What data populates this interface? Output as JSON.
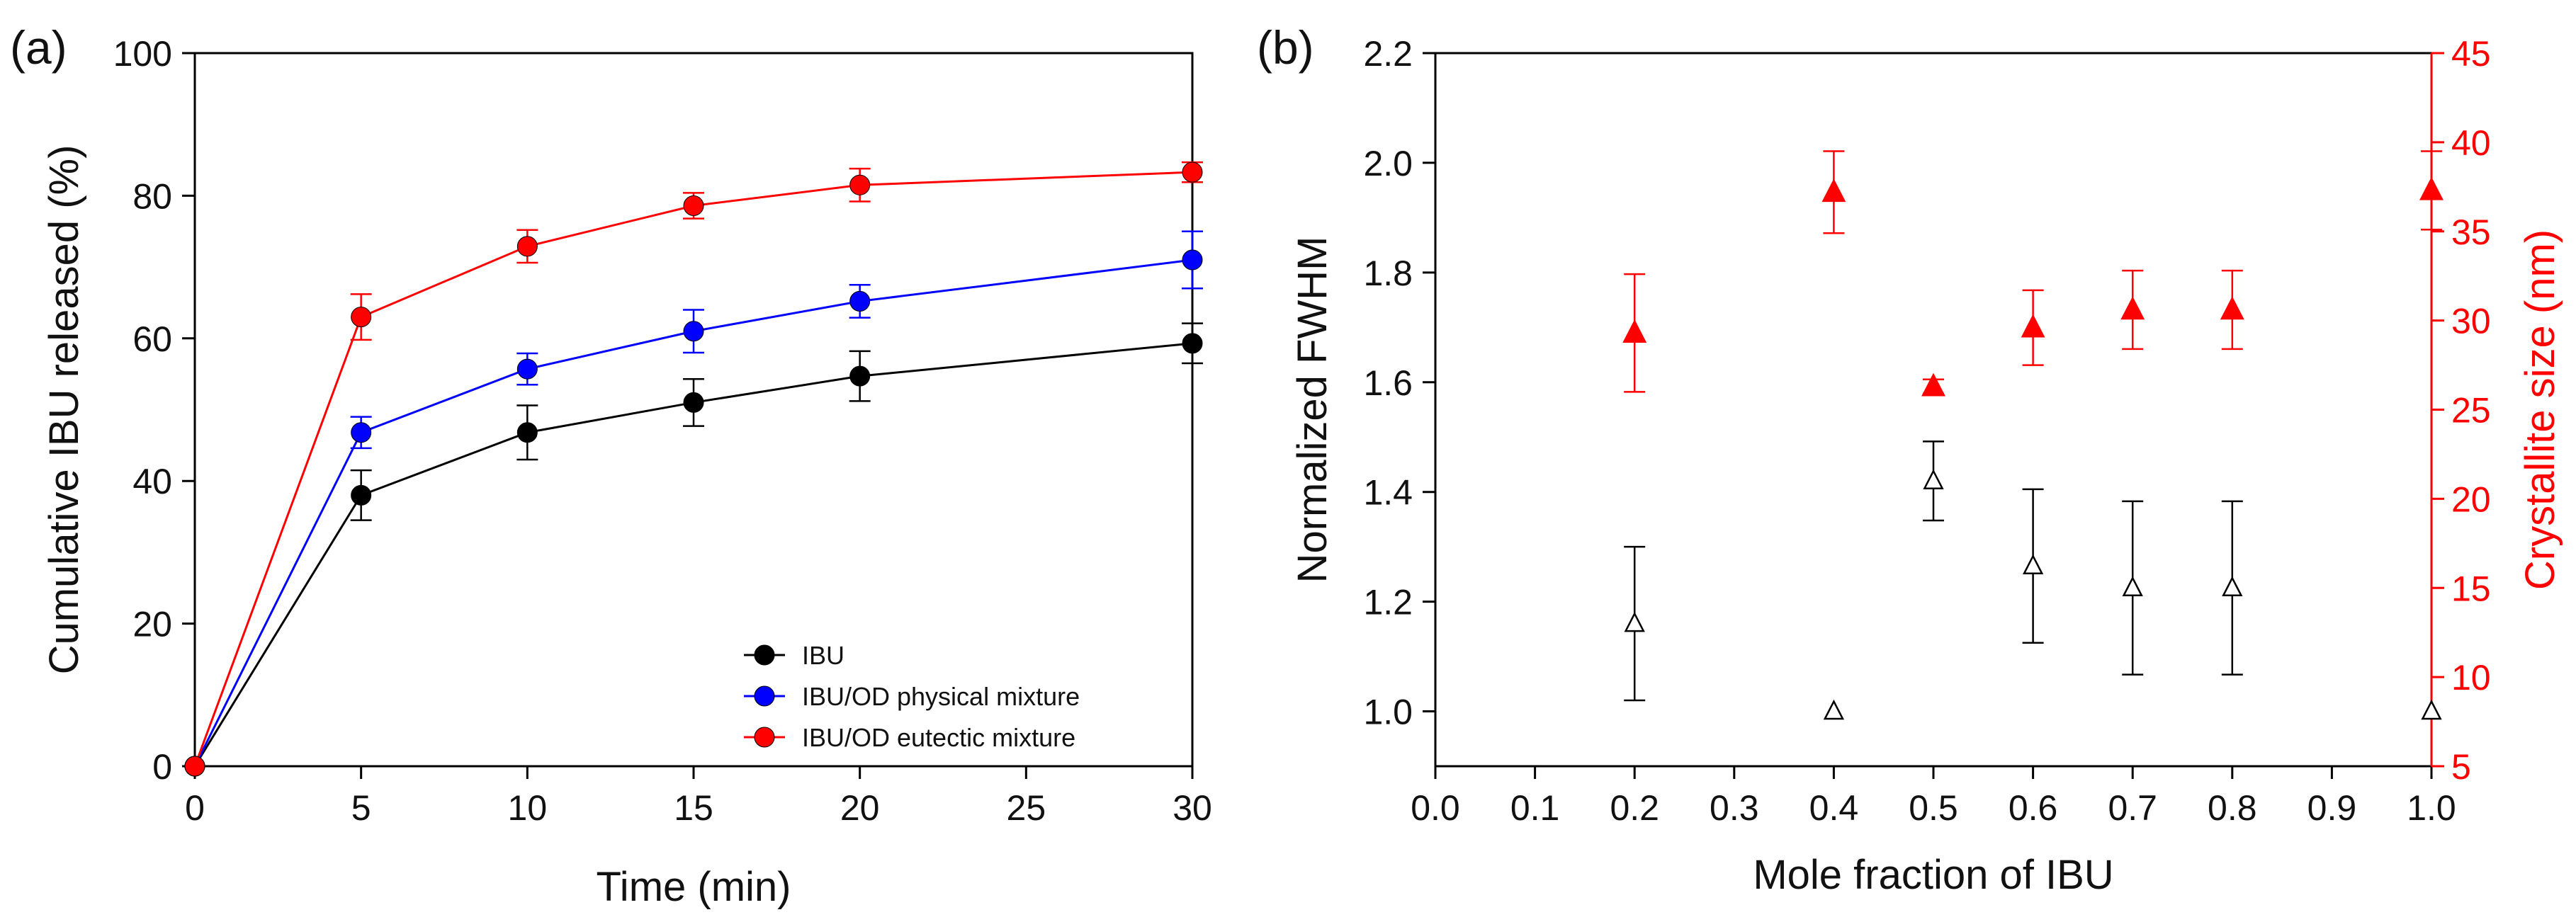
{
  "figure": {
    "panel_labels": [
      "(a)",
      "(b)"
    ]
  },
  "chart_data": [
    {
      "panel": "(a)",
      "type": "line",
      "title": "",
      "xlabel": "Time (min)",
      "ylabel": "Cumulative IBU released (%)",
      "xlim": [
        0,
        30
      ],
      "ylim": [
        0,
        100
      ],
      "xticks": [
        0,
        5,
        10,
        15,
        20,
        25,
        30
      ],
      "yticks": [
        0,
        20,
        40,
        60,
        80,
        100
      ],
      "legend_position": "bottom-right",
      "x": [
        0,
        5,
        10,
        15,
        20,
        30
      ],
      "series": [
        {
          "name": "IBU",
          "color": "#000000",
          "values": [
            0,
            38,
            46.8,
            51,
            54.7,
            59.3
          ],
          "errors": [
            0,
            3.5,
            3.8,
            3.3,
            3.5,
            2.8
          ]
        },
        {
          "name": "IBU/OD physical mixture",
          "color": "#0000ff",
          "values": [
            0,
            46.8,
            55.7,
            61,
            65.2,
            71
          ],
          "errors": [
            0,
            2.2,
            2.2,
            3,
            2.3,
            4
          ]
        },
        {
          "name": "IBU/OD eutectic mixture",
          "color": "#ff0000",
          "values": [
            0,
            63,
            72.9,
            78.6,
            81.5,
            83.3
          ],
          "errors": [
            0,
            3.2,
            2.3,
            1.8,
            2.3,
            1.4
          ]
        }
      ]
    },
    {
      "panel": "(b)",
      "type": "scatter",
      "title": "",
      "xlabel": "Mole fraction of IBU",
      "ylabel": "Normalized FWHM",
      "y2label": "Crystallite size (nm)",
      "xlim": [
        0,
        1
      ],
      "ylim": [
        0.9,
        2.2
      ],
      "y2lim": [
        5,
        45
      ],
      "xticks": [
        "0.0",
        "0.1",
        "0.2",
        "0.3",
        "0.4",
        "0.5",
        "0.6",
        "0.7",
        "0.8",
        "0.9",
        "1.0"
      ],
      "yticks": [
        "1.0",
        "1.2",
        "1.4",
        "1.6",
        "1.8",
        "2.0",
        "2.2"
      ],
      "y2ticks": [
        "5",
        "10",
        "15",
        "20",
        "25",
        "30",
        "35",
        "40",
        "45"
      ],
      "y2_color": "#ff0000",
      "series": [
        {
          "name": "Normalized FWHM",
          "axis": "left",
          "marker": "open-triangle",
          "color": "#000000",
          "x": [
            0.2,
            0.4,
            0.5,
            0.6,
            0.7,
            0.8,
            1.0
          ],
          "values": [
            1.16,
            1.0,
            1.42,
            1.265,
            1.225,
            1.225,
            1.0
          ],
          "errors": [
            0.14,
            0,
            0.072,
            0.14,
            0.158,
            0.158,
            0
          ]
        },
        {
          "name": "Crystallite size (nm)",
          "axis": "right",
          "marker": "filled-triangle",
          "color": "#ff0000",
          "x": [
            0.2,
            0.4,
            0.5,
            0.6,
            0.7,
            0.8,
            1.0
          ],
          "values": [
            29.3,
            37.2,
            26.3,
            29.6,
            30.6,
            30.6,
            37.3
          ],
          "errors": [
            3.3,
            2.3,
            0.4,
            2.1,
            2.2,
            2.2,
            2.2
          ]
        }
      ]
    }
  ]
}
